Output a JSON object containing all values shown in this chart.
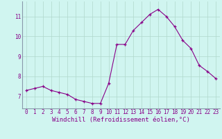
{
  "hours": [
    0,
    1,
    2,
    3,
    4,
    5,
    6,
    7,
    8,
    9,
    10,
    11,
    12,
    13,
    14,
    15,
    16,
    17,
    18,
    19,
    20,
    21,
    22,
    23
  ],
  "values": [
    7.3,
    7.4,
    7.5,
    7.3,
    7.2,
    7.1,
    6.85,
    6.75,
    6.65,
    6.65,
    7.65,
    9.6,
    9.6,
    10.3,
    10.7,
    11.1,
    11.35,
    11.0,
    10.5,
    9.8,
    9.4,
    8.55,
    8.25,
    7.9
  ],
  "line_color": "#880088",
  "marker": "+",
  "bg_color": "#d0f5f0",
  "grid_color": "#b0d8cc",
  "xlabel": "Windchill (Refroidissement éolien,°C)",
  "ylabel_ticks": [
    7,
    8,
    9,
    10,
    11
  ],
  "ylim": [
    6.4,
    11.75
  ],
  "xlim": [
    -0.5,
    23.5
  ],
  "tick_fontsize": 5.5,
  "label_fontsize": 6.5,
  "spine_color": "#8899aa"
}
